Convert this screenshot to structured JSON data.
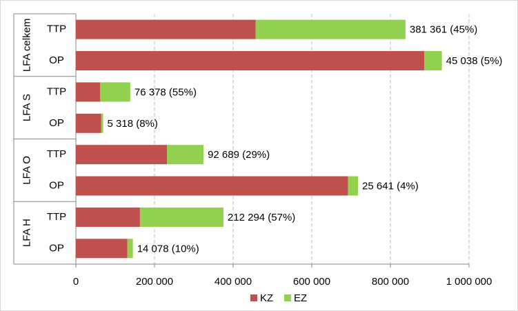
{
  "chart_data": {
    "type": "stacked-bar-horizontal",
    "groups": [
      "LFA celkem",
      "LFA S",
      "LFA O",
      "LFA H"
    ],
    "categories": [
      "TTP",
      "OP",
      "TTP",
      "OP",
      "TTP",
      "OP",
      "TTP",
      "OP"
    ],
    "series": [
      {
        "name": "KZ",
        "color": "#c0504d",
        "values": [
          457000,
          886000,
          62000,
          64000,
          232000,
          692000,
          163000,
          131000
        ]
      },
      {
        "name": "EZ",
        "color": "#92d050",
        "values": [
          381361,
          45038,
          76378,
          5318,
          92689,
          25641,
          212294,
          14078
        ],
        "value_labels": [
          "381 361 (45%)",
          "45 038 (5%)",
          "76 378 (55%)",
          "5 318 (8%)",
          "92 689 (29%)",
          "25 641 (4%)",
          "212 294 (57%)",
          "14 078 (10%)"
        ]
      }
    ],
    "xlim": [
      0,
      1000000
    ],
    "xticks": [
      0,
      {
        "value": 200000,
        "label": "200 000"
      },
      {
        "value": 400000,
        "label": "400 000"
      },
      {
        "value": 600000,
        "label": "600 000"
      },
      {
        "value": 800000,
        "label": "800 000"
      },
      {
        "value": 1000000,
        "label": "1 000 000"
      }
    ],
    "grid": true,
    "legend": "bottom"
  }
}
